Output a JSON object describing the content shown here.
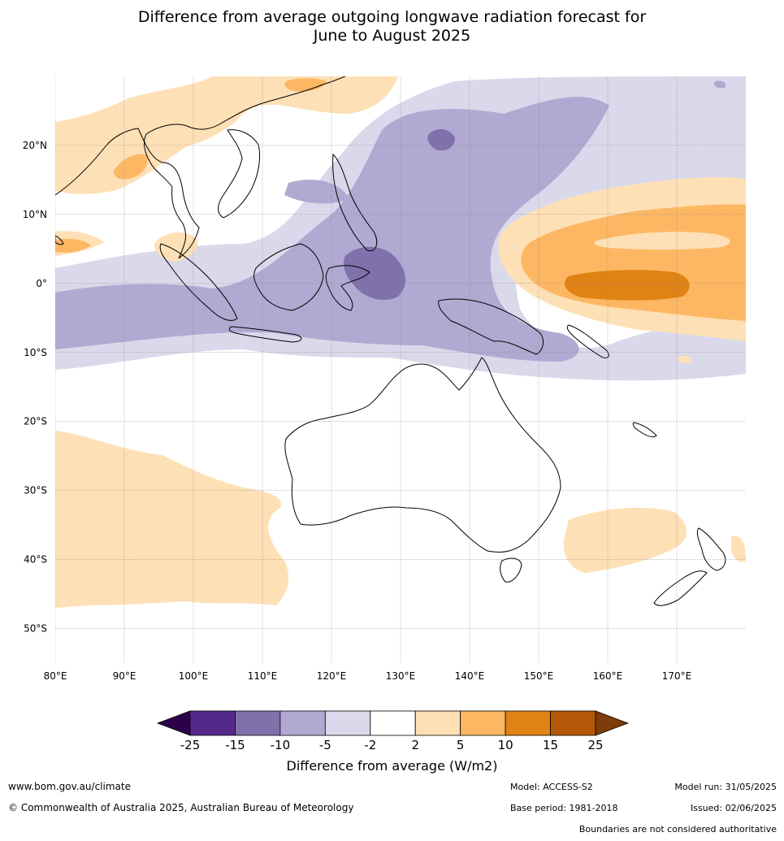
{
  "title": {
    "line1": "Difference from average outgoing longwave radiation forecast for",
    "line2": "June to August 2025"
  },
  "map": {
    "lon_range": [
      80,
      180
    ],
    "lat_range": [
      -55,
      30
    ],
    "lat_ticks": [
      {
        "value": 20,
        "label": "20°N"
      },
      {
        "value": 10,
        "label": "10°N"
      },
      {
        "value": 0,
        "label": "0°"
      },
      {
        "value": -10,
        "label": "10°S"
      },
      {
        "value": -20,
        "label": "20°S"
      },
      {
        "value": -30,
        "label": "30°S"
      },
      {
        "value": -40,
        "label": "40°S"
      },
      {
        "value": -50,
        "label": "50°S"
      }
    ],
    "lon_ticks": [
      {
        "value": 80,
        "label": "80°E"
      },
      {
        "value": 90,
        "label": "90°E"
      },
      {
        "value": 100,
        "label": "100°E"
      },
      {
        "value": 110,
        "label": "110°E"
      },
      {
        "value": 120,
        "label": "120°E"
      },
      {
        "value": 130,
        "label": "130°E"
      },
      {
        "value": 140,
        "label": "140°E"
      },
      {
        "value": 150,
        "label": "150°E"
      },
      {
        "value": 160,
        "label": "160°E"
      },
      {
        "value": 170,
        "label": "170°E"
      }
    ]
  },
  "colorbar": {
    "ticks": [
      "-25",
      "-15",
      "-10",
      "-5",
      "-2",
      "2",
      "5",
      "10",
      "15",
      "25"
    ],
    "colors": [
      "#552989",
      "#8071ad",
      "#b0a9d1",
      "#d9d9eb",
      "#ffffff",
      "#fee0b6",
      "#fdb763",
      "#e08214",
      "#b35806"
    ],
    "under_color": "#2d004b",
    "over_color": "#7f3b08",
    "label": "Difference from average (W/m2)"
  },
  "footer": {
    "url": "www.bom.gov.au/climate",
    "copyright": "© Commonwealth of Australia 2025, Australian Bureau of Meteorology",
    "model": "Model: ACCESS-S2",
    "base_period": "Base period: 1981-2018",
    "model_run": "Model run: 31/05/2025",
    "issued": "Issued: 02/06/2025",
    "boundaries_note": "Boundaries are not considered authoritative"
  }
}
